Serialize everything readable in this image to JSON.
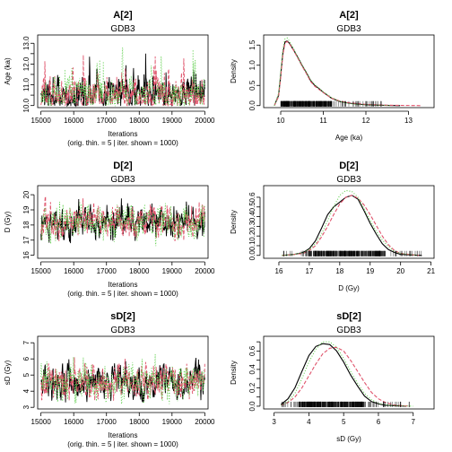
{
  "chart_data": [
    {
      "id": "trace-A2",
      "type": "line",
      "kind": "trace",
      "title": "A[2]",
      "subtitle": "GDB3",
      "xlabel": "Iterations",
      "xlabel2": "(orig. thin. = 5 | iter. shown = 1000)",
      "ylabel": "Age (ka)",
      "xlim": [
        14900,
        20100
      ],
      "ylim": [
        9.9,
        13.4
      ],
      "xticks": [
        15000,
        16000,
        17000,
        18000,
        19000,
        20000
      ],
      "yticks": [
        10.0,
        10.5,
        11.0,
        11.5,
        12.0,
        12.5,
        13.0
      ],
      "ytick_labels": [
        "10.0",
        "",
        "11.0",
        "",
        "12.0",
        "",
        "13.0"
      ],
      "x_range": [
        15000,
        20000
      ],
      "series": [
        {
          "color": "#000000",
          "dash": "",
          "level": 10.5,
          "spread": 0.45,
          "skew": 1.8,
          "max": 12.9,
          "seed": 11
        },
        {
          "color": "#DF536B",
          "dash": "4,2",
          "level": 10.5,
          "spread": 0.45,
          "skew": 1.8,
          "max": 13.25,
          "seed": 23
        },
        {
          "color": "#61D04F",
          "dash": "1,2",
          "level": 10.5,
          "spread": 0.45,
          "skew": 1.8,
          "max": 12.8,
          "seed": 37
        }
      ]
    },
    {
      "id": "density-A2",
      "type": "line",
      "kind": "density",
      "title": "A[2]",
      "subtitle": "GDB3",
      "xlabel": "Age (ka)",
      "ylabel": "Density",
      "xlim": [
        9.6,
        13.6
      ],
      "ylim": [
        -0.05,
        1.75
      ],
      "xticks": [
        10,
        11,
        12,
        13
      ],
      "yticks": [
        0.0,
        0.5,
        1.0,
        1.5
      ],
      "ytick_labels": [
        "0.0",
        "0.5",
        "1.0",
        "1.5"
      ],
      "rug": {
        "min": 10.0,
        "max": 12.4,
        "dense_min": 10.0,
        "dense_max": 11.2
      },
      "series": [
        {
          "color": "#000000",
          "dash": "",
          "x": [
            9.85,
            9.95,
            10.0,
            10.05,
            10.1,
            10.15,
            10.2,
            10.3,
            10.4,
            10.5,
            10.6,
            10.7,
            10.8,
            10.9,
            11.0,
            11.2,
            11.4,
            11.6,
            11.8,
            12.0,
            12.3,
            12.8
          ],
          "y": [
            0.0,
            0.25,
            0.75,
            1.3,
            1.58,
            1.6,
            1.55,
            1.38,
            1.2,
            1.0,
            0.82,
            0.62,
            0.5,
            0.42,
            0.33,
            0.18,
            0.1,
            0.06,
            0.04,
            0.02,
            0.01,
            0.0
          ]
        },
        {
          "color": "#DF536B",
          "dash": "4,2",
          "x": [
            9.85,
            9.95,
            10.0,
            10.05,
            10.1,
            10.15,
            10.2,
            10.3,
            10.4,
            10.5,
            10.6,
            10.7,
            10.8,
            10.9,
            11.0,
            11.2,
            11.4,
            11.6,
            11.8,
            12.0,
            12.5,
            13.3
          ],
          "y": [
            0.0,
            0.22,
            0.7,
            1.25,
            1.55,
            1.59,
            1.54,
            1.37,
            1.18,
            0.98,
            0.8,
            0.6,
            0.48,
            0.4,
            0.32,
            0.18,
            0.11,
            0.07,
            0.05,
            0.03,
            0.01,
            0.0
          ]
        },
        {
          "color": "#61D04F",
          "dash": "1,2",
          "x": [
            9.85,
            9.95,
            10.0,
            10.05,
            10.1,
            10.15,
            10.2,
            10.3,
            10.4,
            10.5,
            10.6,
            10.7,
            10.8,
            10.9,
            11.0,
            11.2,
            11.4,
            11.6,
            11.8,
            12.0,
            12.6
          ],
          "y": [
            0.0,
            0.3,
            0.85,
            1.4,
            1.65,
            1.68,
            1.6,
            1.42,
            1.2,
            1.0,
            0.83,
            0.64,
            0.52,
            0.42,
            0.34,
            0.2,
            0.1,
            0.05,
            0.03,
            0.02,
            0.0
          ]
        }
      ]
    },
    {
      "id": "trace-D2",
      "type": "line",
      "kind": "trace",
      "title": "D[2]",
      "subtitle": "GDB3",
      "xlabel": "Iterations",
      "xlabel2": "(orig. thin. = 5 | iter. shown = 1000)",
      "ylabel": "D (Gy)",
      "xlim": [
        14900,
        20100
      ],
      "ylim": [
        15.8,
        20.6
      ],
      "xticks": [
        15000,
        16000,
        17000,
        18000,
        19000,
        20000
      ],
      "yticks": [
        16,
        17,
        18,
        19,
        20
      ],
      "ytick_labels": [
        "16",
        "17",
        "18",
        "19",
        "20"
      ],
      "x_range": [
        15000,
        20000
      ],
      "series": [
        {
          "color": "#000000",
          "dash": "",
          "level": 18.2,
          "spread": 0.6,
          "skew": 0,
          "min": 16.8,
          "max": 20.4,
          "seed": 51
        },
        {
          "color": "#DF536B",
          "dash": "4,2",
          "level": 18.3,
          "spread": 0.6,
          "skew": 0,
          "min": 16.9,
          "max": 20.2,
          "seed": 63
        },
        {
          "color": "#61D04F",
          "dash": "1,2",
          "level": 18.2,
          "spread": 0.65,
          "skew": 0,
          "min": 16.2,
          "max": 20.3,
          "seed": 79
        }
      ]
    },
    {
      "id": "density-D2",
      "type": "line",
      "kind": "density",
      "title": "D[2]",
      "subtitle": "GDB3",
      "xlabel": "D (Gy)",
      "ylabel": "Density",
      "xlim": [
        15.5,
        21.1
      ],
      "ylim": [
        -0.03,
        0.72
      ],
      "xticks": [
        16,
        17,
        18,
        19,
        20,
        21
      ],
      "yticks": [
        0.0,
        0.1,
        0.2,
        0.3,
        0.4,
        0.5,
        0.6
      ],
      "ytick_labels": [
        "0.0",
        "0.1",
        "0.2",
        "0.3",
        "0.4",
        "0.5",
        "0.6"
      ],
      "rug": {
        "min": 16.1,
        "max": 20.7,
        "dense_min": 17.0,
        "dense_max": 19.5
      },
      "series": [
        {
          "color": "#000000",
          "dash": "",
          "x": [
            16.1,
            16.5,
            16.8,
            17.0,
            17.2,
            17.4,
            17.6,
            17.8,
            18.0,
            18.2,
            18.4,
            18.6,
            18.8,
            19.0,
            19.2,
            19.4,
            19.6,
            19.8,
            20.0,
            20.3,
            20.7
          ],
          "y": [
            0.0,
            0.01,
            0.03,
            0.07,
            0.15,
            0.28,
            0.42,
            0.5,
            0.55,
            0.6,
            0.62,
            0.58,
            0.46,
            0.33,
            0.22,
            0.12,
            0.06,
            0.03,
            0.01,
            0.005,
            0.0
          ]
        },
        {
          "color": "#DF536B",
          "dash": "4,2",
          "x": [
            16.1,
            16.5,
            16.8,
            17.0,
            17.2,
            17.4,
            17.6,
            17.8,
            18.0,
            18.2,
            18.4,
            18.6,
            18.8,
            19.0,
            19.2,
            19.4,
            19.6,
            19.8,
            20.0,
            20.3,
            20.6
          ],
          "y": [
            0.0,
            0.01,
            0.02,
            0.05,
            0.1,
            0.19,
            0.3,
            0.42,
            0.53,
            0.6,
            0.62,
            0.59,
            0.52,
            0.42,
            0.31,
            0.2,
            0.11,
            0.05,
            0.02,
            0.01,
            0.0
          ]
        },
        {
          "color": "#61D04F",
          "dash": "1,2",
          "x": [
            16.1,
            16.5,
            16.8,
            17.0,
            17.2,
            17.4,
            17.6,
            17.8,
            18.0,
            18.2,
            18.4,
            18.6,
            18.8,
            19.0,
            19.2,
            19.4,
            19.6,
            19.8,
            20.0,
            20.3,
            20.6
          ],
          "y": [
            0.0,
            0.01,
            0.03,
            0.06,
            0.12,
            0.22,
            0.36,
            0.5,
            0.62,
            0.67,
            0.66,
            0.6,
            0.48,
            0.36,
            0.25,
            0.16,
            0.09,
            0.04,
            0.02,
            0.01,
            0.0
          ]
        }
      ]
    },
    {
      "id": "trace-sD2",
      "type": "line",
      "kind": "trace",
      "title": "sD[2]",
      "subtitle": "GDB3",
      "xlabel": "Iterations",
      "xlabel2": "(orig. thin. = 5 | iter. shown = 1000)",
      "ylabel": "sD (Gy)",
      "xlim": [
        14900,
        20100
      ],
      "ylim": [
        2.9,
        7.4
      ],
      "xticks": [
        15000,
        16000,
        17000,
        18000,
        19000,
        20000
      ],
      "yticks": [
        3,
        4,
        5,
        6,
        7
      ],
      "ytick_labels": [
        "3",
        "4",
        "5",
        "6",
        "7"
      ],
      "x_range": [
        15000,
        20000
      ],
      "series": [
        {
          "color": "#000000",
          "dash": "",
          "level": 4.5,
          "spread": 0.6,
          "skew": 0.5,
          "min": 3.3,
          "max": 6.5,
          "seed": 91
        },
        {
          "color": "#DF536B",
          "dash": "4,2",
          "level": 4.6,
          "spread": 0.6,
          "skew": 0.5,
          "min": 3.4,
          "max": 6.6,
          "seed": 103
        },
        {
          "color": "#61D04F",
          "dash": "1,2",
          "level": 4.5,
          "spread": 0.65,
          "skew": 0.5,
          "min": 3.2,
          "max": 7.1,
          "seed": 117
        }
      ]
    },
    {
      "id": "density-sD2",
      "type": "line",
      "kind": "density",
      "title": "sD[2]",
      "subtitle": "GDB3",
      "xlabel": "sD (Gy)",
      "ylabel": "Density",
      "xlim": [
        2.7,
        7.6
      ],
      "ylim": [
        -0.03,
        0.76
      ],
      "xticks": [
        3,
        4,
        5,
        6,
        7
      ],
      "yticks": [
        0.0,
        0.1,
        0.2,
        0.3,
        0.4,
        0.5,
        0.6,
        0.7
      ],
      "ytick_labels": [
        "0.0",
        "",
        "0.2",
        "",
        "0.4",
        "",
        "0.6",
        ""
      ],
      "rug": {
        "min": 3.2,
        "max": 6.9,
        "dense_min": 3.7,
        "dense_max": 5.6
      },
      "series": [
        {
          "color": "#000000",
          "dash": "",
          "x": [
            3.2,
            3.4,
            3.6,
            3.8,
            4.0,
            4.2,
            4.4,
            4.6,
            4.8,
            5.0,
            5.2,
            5.4,
            5.6,
            5.8,
            6.0,
            6.2,
            6.5,
            6.8
          ],
          "y": [
            0.02,
            0.08,
            0.2,
            0.38,
            0.55,
            0.65,
            0.68,
            0.67,
            0.6,
            0.48,
            0.34,
            0.22,
            0.11,
            0.05,
            0.025,
            0.01,
            0.005,
            0.0
          ]
        },
        {
          "color": "#DF536B",
          "dash": "4,2",
          "x": [
            3.2,
            3.4,
            3.6,
            3.8,
            4.0,
            4.2,
            4.4,
            4.6,
            4.8,
            5.0,
            5.2,
            5.4,
            5.6,
            5.8,
            6.0,
            6.2,
            6.5,
            6.9
          ],
          "y": [
            0.01,
            0.04,
            0.1,
            0.2,
            0.33,
            0.46,
            0.57,
            0.63,
            0.64,
            0.6,
            0.5,
            0.38,
            0.26,
            0.15,
            0.08,
            0.04,
            0.01,
            0.0
          ]
        },
        {
          "color": "#61D04F",
          "dash": "1,2",
          "x": [
            3.2,
            3.4,
            3.6,
            3.8,
            4.0,
            4.2,
            4.4,
            4.6,
            4.8,
            5.0,
            5.2,
            5.4,
            5.6,
            5.8,
            6.0,
            6.3,
            6.6,
            7.0
          ],
          "y": [
            0.01,
            0.05,
            0.14,
            0.3,
            0.48,
            0.62,
            0.7,
            0.7,
            0.64,
            0.52,
            0.38,
            0.25,
            0.14,
            0.07,
            0.03,
            0.01,
            0.005,
            0.0
          ]
        }
      ]
    }
  ]
}
